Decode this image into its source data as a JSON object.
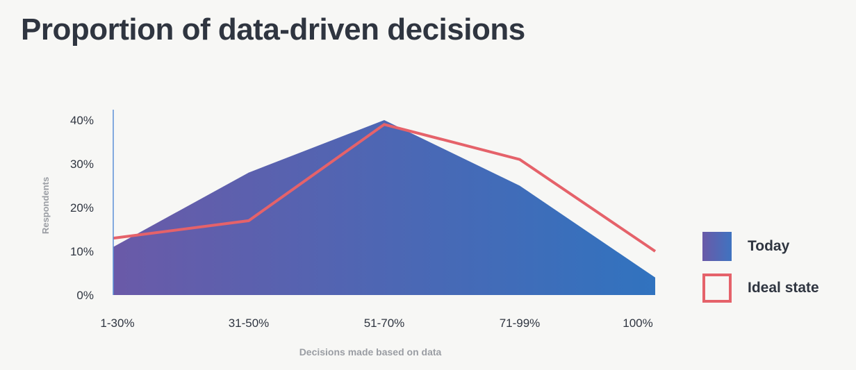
{
  "chart_data": {
    "type": "area",
    "title": "Proportion of data-driven decisions",
    "xlabel": "Decisions made based on data",
    "ylabel": "Respondents",
    "categories": [
      "1-30%",
      "31-50%",
      "51-70%",
      "71-99%",
      "100%"
    ],
    "yticks": [
      "0%",
      "10%",
      "20%",
      "30%",
      "40%"
    ],
    "ylim": [
      0,
      40
    ],
    "grid": false,
    "legend_position": "right",
    "series": [
      {
        "name": "Today",
        "style": "area",
        "values": [
          11,
          28,
          40,
          25,
          4
        ],
        "color": "#5a62b0"
      },
      {
        "name": "Ideal state",
        "style": "line",
        "values": [
          13,
          17,
          39,
          31,
          10
        ],
        "color": "#e5626a"
      }
    ]
  },
  "legend": {
    "today_label": "Today",
    "ideal_label": "Ideal state"
  },
  "colors": {
    "gradient_start": "#6a5aa8",
    "gradient_end": "#3173bf",
    "line": "#e5626a",
    "axis": "#5b8fd6",
    "text": "#2f3540",
    "muted": "#9a9da3"
  }
}
